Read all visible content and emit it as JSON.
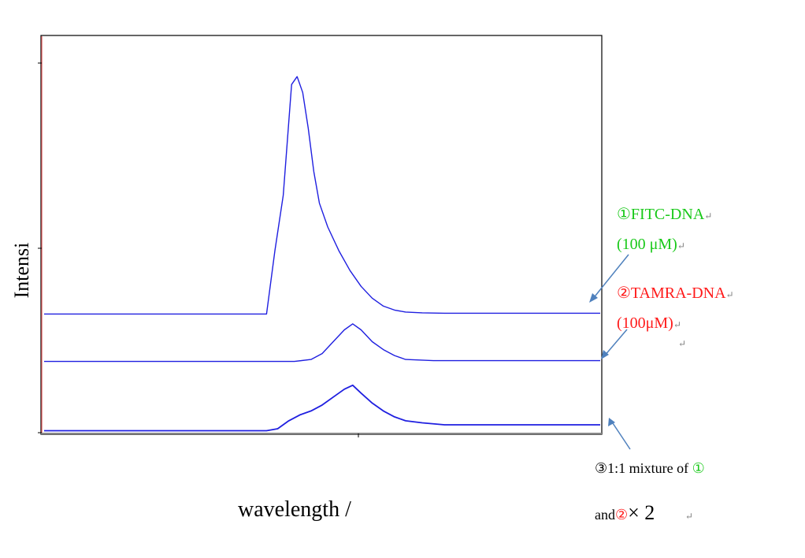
{
  "colors": {
    "trace": "#1f1fe0",
    "frame": "#000000",
    "left_axis": "#e06060",
    "arrow": "#4f81bd",
    "fitc": "#19c919",
    "tamra": "#ff1a1a"
  },
  "chart_data": {
    "type": "line",
    "xlabel": "wavelength /",
    "ylabel": "Intensi",
    "grid": false,
    "xlim": [
      0,
      100
    ],
    "ylim": [
      0,
      100
    ],
    "series": [
      {
        "name": "①FITC-DNA (100 μM)",
        "x": [
          0,
          10,
          20,
          30,
          40,
          41.5,
          43,
          44.5,
          45.5,
          46.5,
          47.5,
          48.5,
          49.5,
          51,
          53,
          55,
          57,
          59,
          61,
          63,
          65,
          68,
          72,
          80,
          90,
          100
        ],
        "y": [
          30,
          30,
          30,
          30,
          30,
          46,
          60,
          88,
          90,
          86,
          77,
          66,
          58,
          52,
          46,
          41,
          37,
          34,
          32,
          31,
          30.5,
          30.3,
          30.2,
          30.2,
          30.2,
          30.2
        ]
      },
      {
        "name": "②TAMRA-DNA (100μM)",
        "x": [
          0,
          10,
          20,
          30,
          40,
          45,
          48,
          50,
          52,
          54,
          55.5,
          57,
          59,
          61,
          63,
          65,
          70,
          80,
          90,
          100
        ],
        "y": [
          18,
          18,
          18,
          18,
          18,
          18,
          18.5,
          20,
          23,
          26,
          27.5,
          26,
          23,
          21,
          19.5,
          18.5,
          18.2,
          18.2,
          18.2,
          18.2
        ]
      },
      {
        "name": "③1:1 mixture of ① and② × 2",
        "x": [
          0,
          10,
          20,
          30,
          40,
          42,
          44,
          46,
          48,
          50,
          52,
          54,
          55.5,
          57,
          59,
          61,
          63,
          65,
          68,
          72,
          80,
          90,
          100
        ],
        "y": [
          0.5,
          0.5,
          0.5,
          0.5,
          0.5,
          1,
          3,
          4.5,
          5.5,
          7,
          9,
          11,
          12,
          10,
          7.5,
          5.5,
          4,
          3,
          2.5,
          2,
          2,
          2,
          2
        ]
      }
    ]
  },
  "annotations": {
    "fitc_name": "①FITC-DNA",
    "fitc_conc": "(100 μM)",
    "tamra_name": "②TAMRA-DNA",
    "tamra_conc": "(100μM)",
    "mix_line1_a": "③1:1 mixture of ",
    "mix_line1_b": "①",
    "mix_line2_a": "and",
    "mix_line2_b": "②",
    "mix_line2_c": "× 2",
    "return_mark": "↵"
  }
}
